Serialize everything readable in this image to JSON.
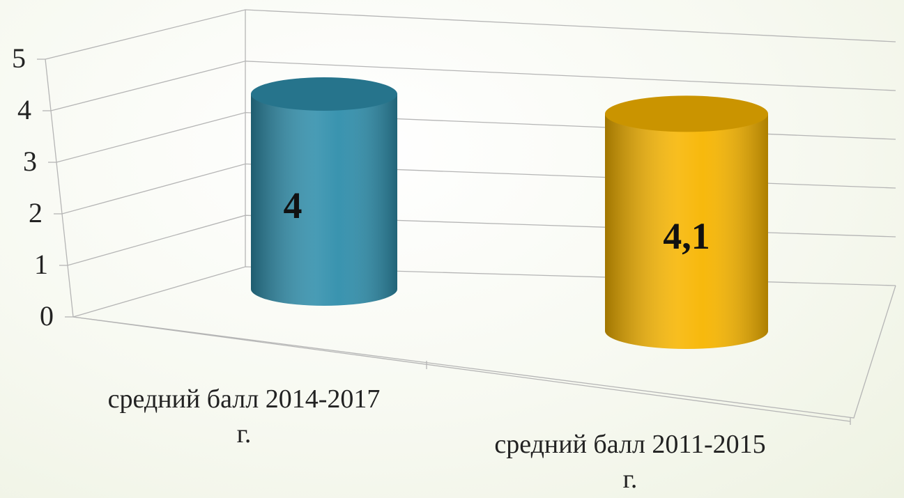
{
  "chart_data": {
    "type": "bar3d-cylinder",
    "categories": [
      "средний балл 2014-2017г.",
      "средний балл 2011-2015г."
    ],
    "values": [
      4,
      4.1
    ],
    "value_labels": [
      "4",
      "4,1"
    ],
    "colors": [
      "#2f8eab",
      "#f7b500"
    ],
    "ylim": [
      0,
      5
    ],
    "yticks": [
      0,
      1,
      2,
      3,
      4,
      5
    ],
    "grid": true
  }
}
